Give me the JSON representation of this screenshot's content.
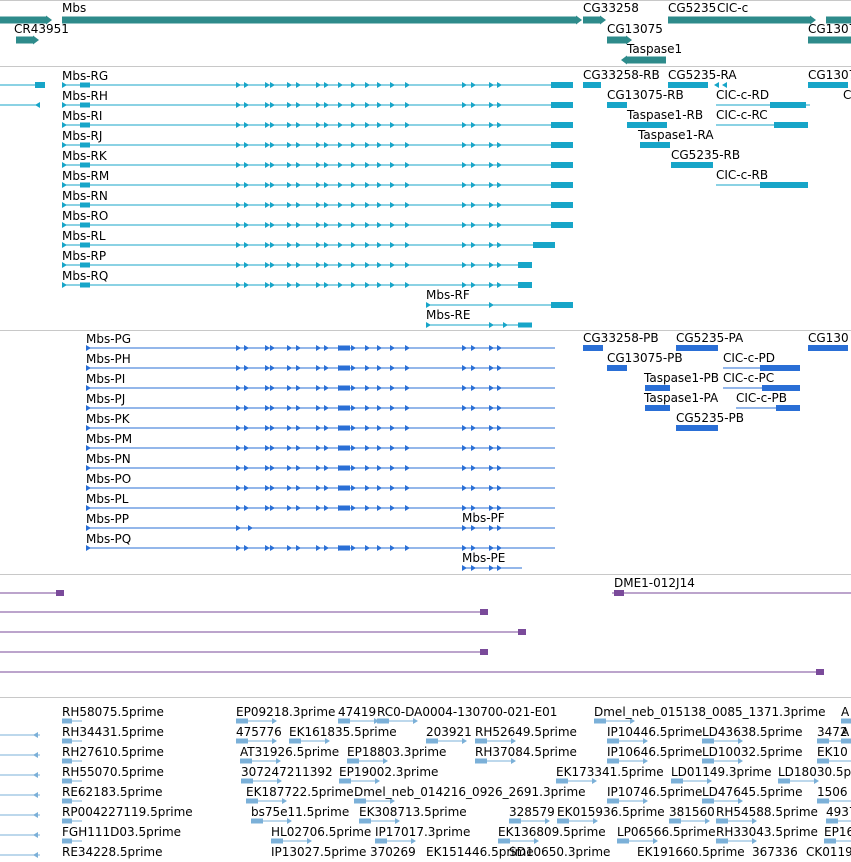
{
  "colors": {
    "gene": "#2e8b8b",
    "mrna": "#17a5c8",
    "protein": "#2a6fd6",
    "alignment": "#7a4a9a",
    "est": "#7bb0d8",
    "separator": "#c8c8c8"
  },
  "tracks": {
    "genes": {
      "labels": [
        "Mbs",
        "CR43951",
        "CG33258",
        "CG5235",
        "CIC-c",
        "CG13075",
        "Taspase1",
        "CG1307"
      ]
    },
    "transcripts": {
      "labels": [
        "Mbs-RG",
        "Mbs-RH",
        "Mbs-RI",
        "Mbs-RJ",
        "Mbs-RK",
        "Mbs-RM",
        "Mbs-RN",
        "Mbs-RO",
        "Mbs-RL",
        "Mbs-RP",
        "Mbs-RQ",
        "Mbs-RF",
        "Mbs-RE",
        "CG33258-RB",
        "CG5235-RA",
        "CG1307",
        "CG13075-RB",
        "CIC-c-RD",
        "C",
        "Taspase1-RB",
        "CIC-c-RC",
        "Taspase1-RA",
        "CG5235-RB",
        "CIC-c-RB"
      ]
    },
    "proteins": {
      "labels": [
        "Mbs-PG",
        "Mbs-PH",
        "Mbs-PI",
        "Mbs-PJ",
        "Mbs-PK",
        "Mbs-PM",
        "Mbs-PN",
        "Mbs-PO",
        "Mbs-PL",
        "Mbs-PP",
        "Mbs-PQ",
        "Mbs-PF",
        "Mbs-PE",
        "CG33258-PB",
        "CG5235-PA",
        "CG130",
        "CG13075-PB",
        "CIC-c-PD",
        "Taspase1-PB",
        "CIC-c-PC",
        "Taspase1-PA",
        "CIC-c-PB",
        "CG5235-PB"
      ]
    },
    "alignments": {
      "labels": [
        "DME1-012J14"
      ]
    },
    "ests": {
      "labels": [
        "RH58075.5prime",
        "EP09218.3prime",
        "47419",
        "RC0-DA0004-130700-021-E01",
        "Dmel_neb_015138_0085_1371.3prime",
        "A",
        "RH34431.5prime",
        "475776",
        "EK161835.5prime",
        "203921",
        "RH52649.5prime",
        "IP10446.5prime",
        "LD43638.5prime",
        "3472",
        "A",
        "RH27610.5prime",
        "AT31926.5prime",
        "EP18803.3prime",
        "RH37084.5prime",
        "IP10646.5prime",
        "LD10032.5prime",
        "EK10",
        "RH55070.5prime",
        "307247211392",
        "EP19002.3prime",
        "EK173341.5prime",
        "LD01149.3prime",
        "LD18030.5p",
        "RE62183.5prime",
        "EK187722.5prime",
        "Dmel_neb_014216_0926_2691.3prime",
        "IP10746.5prime",
        "LD47645.5prime",
        "1506",
        "RP004227119.5prime",
        "bs75e11.5prime",
        "EK308713.5prime",
        "328579",
        "EK015936.5prime",
        "381560",
        "RH54588.5prime",
        "4937",
        "FGH111D03.5prime",
        "HL02706.5prime",
        "IP17017.3prime",
        "EK136809.5prime",
        "LP06566.5prime",
        "RH33043.5prime",
        "EP16",
        "RE34228.5prime",
        "IP13027.5prime",
        "370269",
        "EK151446.5prime",
        "SD10650.3prime",
        "EK191660.5prime",
        "367336",
        "CK01195"
      ]
    }
  }
}
